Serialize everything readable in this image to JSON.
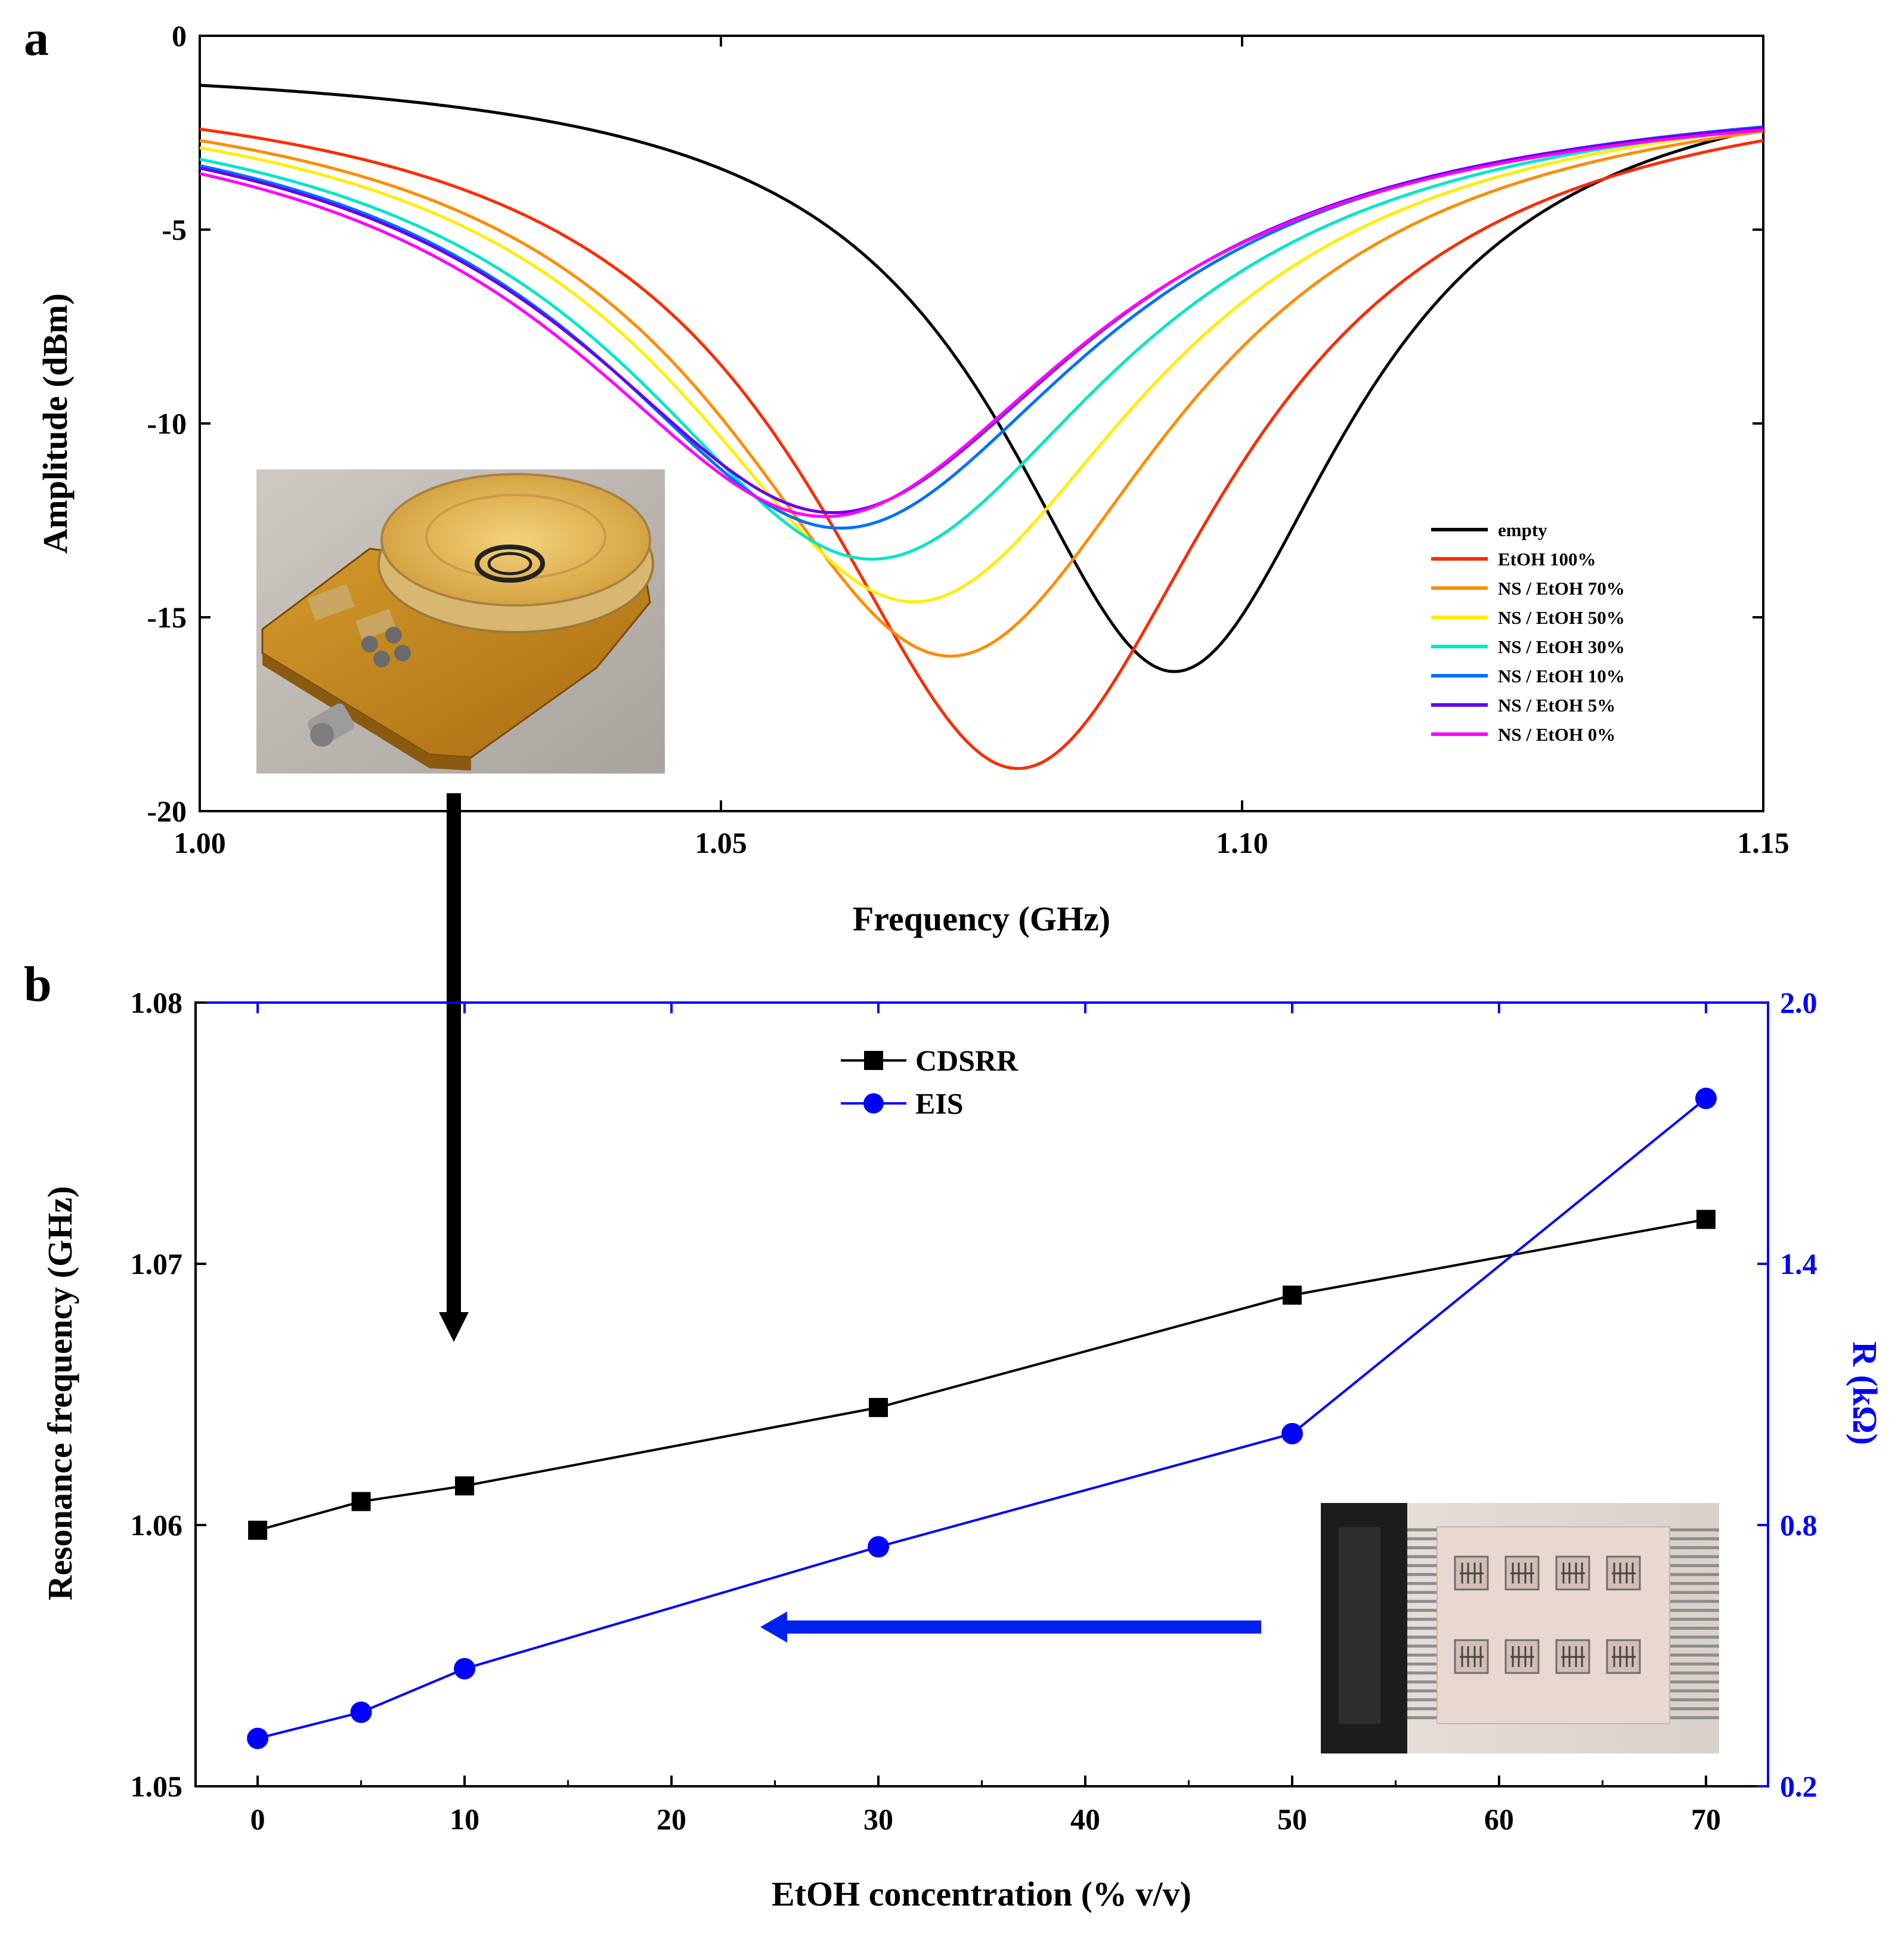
{
  "figure": {
    "panel_a_label": "a",
    "panel_b_label": "b"
  },
  "chart_data": [
    {
      "type": "line",
      "panel": "a",
      "title": "",
      "xlabel": "Frequency (GHz)",
      "ylabel": "Amplitude (dBm)",
      "xlim": [
        1.0,
        1.15
      ],
      "ylim": [
        -20,
        0
      ],
      "xticks": [
        1.0,
        1.05,
        1.1,
        1.15
      ],
      "xtick_labels": [
        "1.00",
        "1.05",
        "1.10",
        "1.15"
      ],
      "yticks": [
        0,
        -5,
        -10,
        -15,
        -20
      ],
      "ytick_labels": [
        "0",
        "-5",
        "-10",
        "-15",
        "-20"
      ],
      "legend_position": "lower-right",
      "inset": "photo-of-resonator-sensor-with-liquid-well",
      "series": [
        {
          "name": "empty",
          "color": "#000000",
          "f0": 1.0935,
          "min": -16.4,
          "gamma": 0.0205,
          "base": 0.55
        },
        {
          "name": "EtOH 100%",
          "color": "#ff2a00",
          "f0": 1.0785,
          "min": -18.9,
          "gamma": 0.0245,
          "base": 0.8
        },
        {
          "name": "NS / EtOH 70%",
          "color": "#ff8c00",
          "f0": 1.072,
          "min": -16.0,
          "gamma": 0.0265,
          "base": 0.9
        },
        {
          "name": "NS / EtOH 50%",
          "color": "#ffee00",
          "f0": 1.0685,
          "min": -14.6,
          "gamma": 0.0275,
          "base": 1.0
        },
        {
          "name": "NS / EtOH 30%",
          "color": "#00e6c8",
          "f0": 1.0645,
          "min": -13.5,
          "gamma": 0.029,
          "base": 1.1
        },
        {
          "name": "NS / EtOH 10%",
          "color": "#0070ff",
          "f0": 1.0615,
          "min": -12.7,
          "gamma": 0.0295,
          "base": 1.2
        },
        {
          "name": "NS / EtOH 5%",
          "color": "#6600ee",
          "f0": 1.0608,
          "min": -12.3,
          "gamma": 0.03,
          "base": 1.25
        },
        {
          "name": "NS / EtOH 0%",
          "color": "#ff00ff",
          "f0": 1.06,
          "min": -12.4,
          "gamma": 0.0303,
          "base": 1.3
        }
      ]
    },
    {
      "type": "line",
      "panel": "b",
      "title": "",
      "xlabel": "EtOH concentration (% v/v)",
      "ylabel_left": "Resonance frequency (GHz)",
      "ylabel_right": "R (kΩ)",
      "xlim": [
        -3,
        73
      ],
      "xticks": [
        0,
        10,
        20,
        30,
        40,
        50,
        60,
        70
      ],
      "xtick_labels": [
        "0",
        "10",
        "20",
        "30",
        "40",
        "50",
        "60",
        "70"
      ],
      "ylim_left": [
        1.05,
        1.08
      ],
      "yticks_left": [
        1.05,
        1.06,
        1.07,
        1.08
      ],
      "ytick_labels_left": [
        "1.05",
        "1.06",
        "1.07",
        "1.08"
      ],
      "ylim_right": [
        0.2,
        2.0
      ],
      "yticks_right": [
        0.2,
        0.8,
        1.4,
        2.0
      ],
      "ytick_labels_right": [
        "0.2",
        "0.8",
        "1.4",
        "2.0"
      ],
      "legend_position": "top-center",
      "inset": "photo-of-interdigitated-electrode-array",
      "series": [
        {
          "name": "CDSRR",
          "axis": "left",
          "color": "#000000",
          "marker": "square",
          "x": [
            0,
            5,
            10,
            30,
            50,
            70
          ],
          "y": [
            1.0598,
            1.0609,
            1.0615,
            1.0645,
            1.0688,
            1.0717
          ]
        },
        {
          "name": "EIS",
          "axis": "right",
          "color": "#0000ff",
          "marker": "circle",
          "x": [
            0,
            5,
            10,
            30,
            50,
            70
          ],
          "y": [
            0.31,
            0.37,
            0.47,
            0.75,
            1.01,
            1.78
          ]
        }
      ]
    }
  ]
}
